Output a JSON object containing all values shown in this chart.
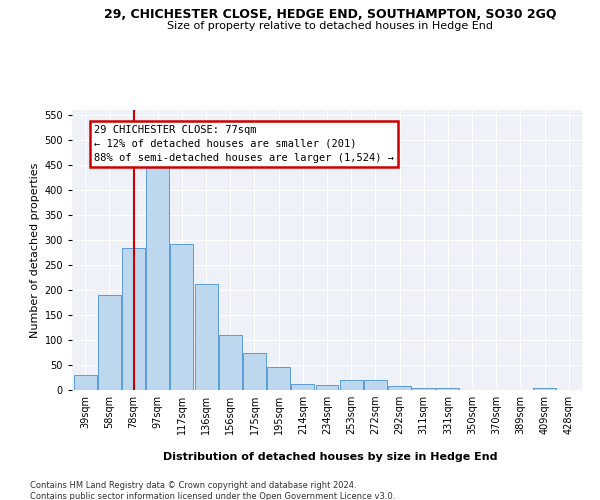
{
  "title": "29, CHICHESTER CLOSE, HEDGE END, SOUTHAMPTON, SO30 2GQ",
  "subtitle": "Size of property relative to detached houses in Hedge End",
  "xlabel": "Distribution of detached houses by size in Hedge End",
  "ylabel": "Number of detached properties",
  "bar_labels": [
    "39sqm",
    "58sqm",
    "78sqm",
    "97sqm",
    "117sqm",
    "136sqm",
    "156sqm",
    "175sqm",
    "195sqm",
    "214sqm",
    "234sqm",
    "253sqm",
    "272sqm",
    "292sqm",
    "311sqm",
    "331sqm",
    "350sqm",
    "370sqm",
    "389sqm",
    "409sqm",
    "428sqm"
  ],
  "bar_values": [
    30,
    190,
    285,
    460,
    293,
    213,
    110,
    75,
    47,
    13,
    10,
    21,
    20,
    9,
    4,
    5,
    0,
    0,
    0,
    5,
    0
  ],
  "bar_color": "#bdd7ee",
  "bar_edge_color": "#5b9bd5",
  "vline_x_index": 2,
  "vline_color": "#cc0000",
  "annotation_line1": "29 CHICHESTER CLOSE: 77sqm",
  "annotation_line2": "← 12% of detached houses are smaller (201)",
  "annotation_line3": "88% of semi-detached houses are larger (1,524) →",
  "annotation_box_color": "#cc0000",
  "ylim": [
    0,
    560
  ],
  "yticks": [
    0,
    50,
    100,
    150,
    200,
    250,
    300,
    350,
    400,
    450,
    500,
    550
  ],
  "footer1": "Contains HM Land Registry data © Crown copyright and database right 2024.",
  "footer2": "Contains public sector information licensed under the Open Government Licence v3.0.",
  "bg_color": "#eef2f8",
  "fig_bg": "#ffffff",
  "grid_color": "#ffffff",
  "title_fontsize": 9,
  "subtitle_fontsize": 8,
  "ylabel_fontsize": 8,
  "xlabel_fontsize": 8,
  "tick_fontsize": 7,
  "footer_fontsize": 6
}
